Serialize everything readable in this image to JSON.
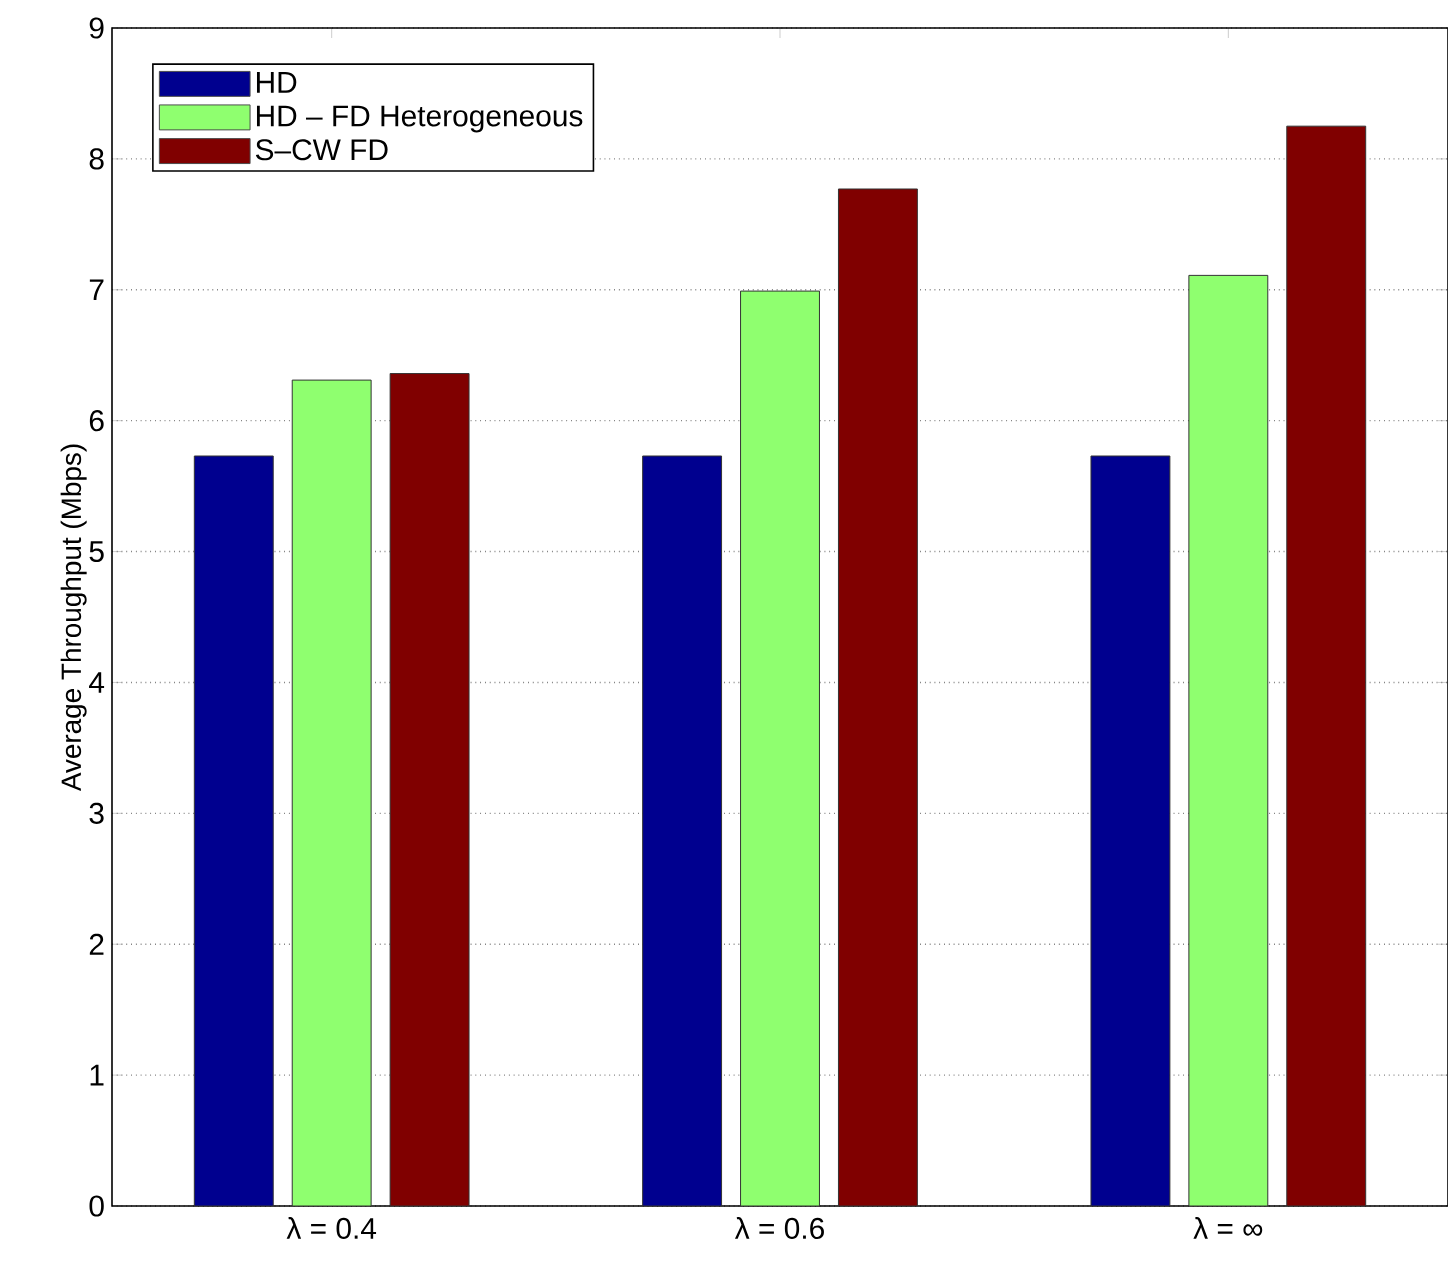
{
  "chart_data": {
    "type": "bar",
    "ylabel": "Average Throughput (Mbps)",
    "categories": [
      "λ = 0.4",
      "λ = 0.6",
      "λ = ∞"
    ],
    "series": [
      {
        "name": "HD",
        "color": "#00008f",
        "values": [
          5.73,
          5.73,
          5.73
        ]
      },
      {
        "name": "HD – FD Heterogeneous",
        "color": "#8fff6f",
        "values": [
          6.31,
          6.99,
          7.11
        ]
      },
      {
        "name": "S–CW FD",
        "color": "#800000",
        "values": [
          6.36,
          7.77,
          8.25
        ]
      }
    ],
    "ylim": [
      0,
      9
    ],
    "yticks": [
      0,
      1,
      2,
      3,
      4,
      5,
      6,
      7,
      8,
      9
    ],
    "grid": "y",
    "legend": "top left"
  }
}
